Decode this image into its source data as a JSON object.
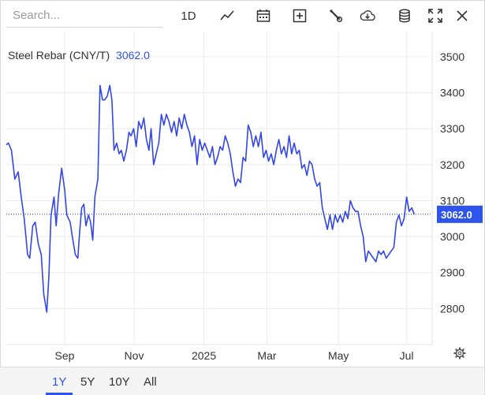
{
  "search": {
    "placeholder": "Search..."
  },
  "toolbar": {
    "interval_label": "1D",
    "icons": [
      "line-chart-icon",
      "calendar-icon",
      "add-indicator-icon",
      "wrench-icon",
      "download-icon",
      "database-icon",
      "fullscreen-icon"
    ]
  },
  "legend": {
    "name": "Steel Rebar (CNY/T)",
    "value": "3062.0"
  },
  "colors": {
    "line": "#3346e8",
    "accent": "#2f54eb",
    "grid": "#ececec"
  },
  "ranges": {
    "items": [
      "1Y",
      "5Y",
      "10Y",
      "All"
    ],
    "active": "1Y"
  },
  "chart_data": {
    "type": "line",
    "title": "Steel Rebar (CNY/T)",
    "last_value": 3062.0,
    "ylim": [
      2700,
      3570
    ],
    "yticks": [
      2800,
      2900,
      3000,
      3100,
      3200,
      3300,
      3400,
      3500
    ],
    "xticks": [
      {
        "label": "Sep",
        "t": 0.137
      },
      {
        "label": "Nov",
        "t": 0.3
      },
      {
        "label": "2025",
        "t": 0.464
      },
      {
        "label": "Mar",
        "t": 0.612
      },
      {
        "label": "May",
        "t": 0.78
      },
      {
        "label": "Jul",
        "t": 0.94
      }
    ],
    "grid": true,
    "series": [
      {
        "name": "Steel Rebar",
        "points": [
          [
            0.0,
            3255
          ],
          [
            0.005,
            3260
          ],
          [
            0.012,
            3240
          ],
          [
            0.02,
            3160
          ],
          [
            0.028,
            3180
          ],
          [
            0.035,
            3110
          ],
          [
            0.042,
            3050
          ],
          [
            0.05,
            2950
          ],
          [
            0.055,
            2940
          ],
          [
            0.062,
            3030
          ],
          [
            0.068,
            3040
          ],
          [
            0.075,
            2980
          ],
          [
            0.082,
            2950
          ],
          [
            0.088,
            2840
          ],
          [
            0.095,
            2790
          ],
          [
            0.1,
            2890
          ],
          [
            0.105,
            3060
          ],
          [
            0.112,
            3110
          ],
          [
            0.117,
            3030
          ],
          [
            0.123,
            3120
          ],
          [
            0.13,
            3190
          ],
          [
            0.137,
            3130
          ],
          [
            0.142,
            3060
          ],
          [
            0.15,
            3040
          ],
          [
            0.155,
            3000
          ],
          [
            0.162,
            2950
          ],
          [
            0.168,
            2940
          ],
          [
            0.172,
            3010
          ],
          [
            0.177,
            3080
          ],
          [
            0.182,
            3090
          ],
          [
            0.187,
            3030
          ],
          [
            0.193,
            3060
          ],
          [
            0.198,
            3040
          ],
          [
            0.203,
            2990
          ],
          [
            0.208,
            3110
          ],
          [
            0.215,
            3160
          ],
          [
            0.22,
            3420
          ],
          [
            0.226,
            3380
          ],
          [
            0.231,
            3380
          ],
          [
            0.237,
            3390
          ],
          [
            0.243,
            3420
          ],
          [
            0.248,
            3380
          ],
          [
            0.253,
            3240
          ],
          [
            0.259,
            3260
          ],
          [
            0.265,
            3230
          ],
          [
            0.27,
            3240
          ],
          [
            0.276,
            3210
          ],
          [
            0.282,
            3240
          ],
          [
            0.288,
            3290
          ],
          [
            0.293,
            3280
          ],
          [
            0.299,
            3300
          ],
          [
            0.305,
            3250
          ],
          [
            0.311,
            3320
          ],
          [
            0.317,
            3300
          ],
          [
            0.323,
            3330
          ],
          [
            0.329,
            3270
          ],
          [
            0.335,
            3240
          ],
          [
            0.34,
            3300
          ],
          [
            0.346,
            3200
          ],
          [
            0.352,
            3230
          ],
          [
            0.358,
            3260
          ],
          [
            0.364,
            3340
          ],
          [
            0.37,
            3310
          ],
          [
            0.376,
            3340
          ],
          [
            0.382,
            3320
          ],
          [
            0.388,
            3290
          ],
          [
            0.394,
            3320
          ],
          [
            0.4,
            3280
          ],
          [
            0.406,
            3330
          ],
          [
            0.412,
            3300
          ],
          [
            0.418,
            3340
          ],
          [
            0.424,
            3310
          ],
          [
            0.43,
            3290
          ],
          [
            0.436,
            3250
          ],
          [
            0.442,
            3280
          ],
          [
            0.448,
            3200
          ],
          [
            0.454,
            3270
          ],
          [
            0.46,
            3240
          ],
          [
            0.466,
            3260
          ],
          [
            0.472,
            3240
          ],
          [
            0.478,
            3220
          ],
          [
            0.484,
            3250
          ],
          [
            0.49,
            3200
          ],
          [
            0.496,
            3220
          ],
          [
            0.502,
            3250
          ],
          [
            0.508,
            3240
          ],
          [
            0.514,
            3280
          ],
          [
            0.52,
            3260
          ],
          [
            0.526,
            3230
          ],
          [
            0.532,
            3180
          ],
          [
            0.538,
            3140
          ],
          [
            0.544,
            3160
          ],
          [
            0.55,
            3150
          ],
          [
            0.556,
            3220
          ],
          [
            0.562,
            3210
          ],
          [
            0.568,
            3310
          ],
          [
            0.574,
            3290
          ],
          [
            0.58,
            3250
          ],
          [
            0.586,
            3280
          ],
          [
            0.592,
            3250
          ],
          [
            0.598,
            3290
          ],
          [
            0.604,
            3220
          ],
          [
            0.61,
            3240
          ],
          [
            0.616,
            3210
          ],
          [
            0.622,
            3230
          ],
          [
            0.628,
            3200
          ],
          [
            0.634,
            3240
          ],
          [
            0.64,
            3270
          ],
          [
            0.646,
            3230
          ],
          [
            0.652,
            3250
          ],
          [
            0.658,
            3220
          ],
          [
            0.664,
            3280
          ],
          [
            0.67,
            3230
          ],
          [
            0.676,
            3260
          ],
          [
            0.682,
            3230
          ],
          [
            0.688,
            3240
          ],
          [
            0.694,
            3190
          ],
          [
            0.7,
            3200
          ],
          [
            0.706,
            3170
          ],
          [
            0.712,
            3210
          ],
          [
            0.718,
            3200
          ],
          [
            0.724,
            3160
          ],
          [
            0.73,
            3140
          ],
          [
            0.736,
            3150
          ],
          [
            0.742,
            3080
          ],
          [
            0.748,
            3050
          ],
          [
            0.754,
            3020
          ],
          [
            0.76,
            3060
          ],
          [
            0.766,
            3020
          ],
          [
            0.772,
            3060
          ],
          [
            0.778,
            3040
          ],
          [
            0.784,
            3060
          ],
          [
            0.79,
            3040
          ],
          [
            0.796,
            3070
          ],
          [
            0.802,
            3050
          ],
          [
            0.808,
            3100
          ],
          [
            0.814,
            3080
          ],
          [
            0.82,
            3070
          ],
          [
            0.826,
            3070
          ],
          [
            0.832,
            3030
          ],
          [
            0.838,
            3000
          ],
          [
            0.844,
            2930
          ],
          [
            0.85,
            2960
          ],
          [
            0.856,
            2950
          ],
          [
            0.862,
            2940
          ],
          [
            0.868,
            2930
          ],
          [
            0.874,
            2960
          ],
          [
            0.88,
            2950
          ],
          [
            0.886,
            2960
          ],
          [
            0.892,
            2940
          ],
          [
            0.898,
            2950
          ],
          [
            0.904,
            2960
          ],
          [
            0.91,
            2970
          ],
          [
            0.916,
            3040
          ],
          [
            0.922,
            3060
          ],
          [
            0.928,
            3030
          ],
          [
            0.934,
            3050
          ],
          [
            0.94,
            3110
          ],
          [
            0.946,
            3070
          ],
          [
            0.952,
            3080
          ],
          [
            0.958,
            3062
          ]
        ]
      }
    ]
  },
  "settings": {
    "icon": "gear-icon"
  }
}
